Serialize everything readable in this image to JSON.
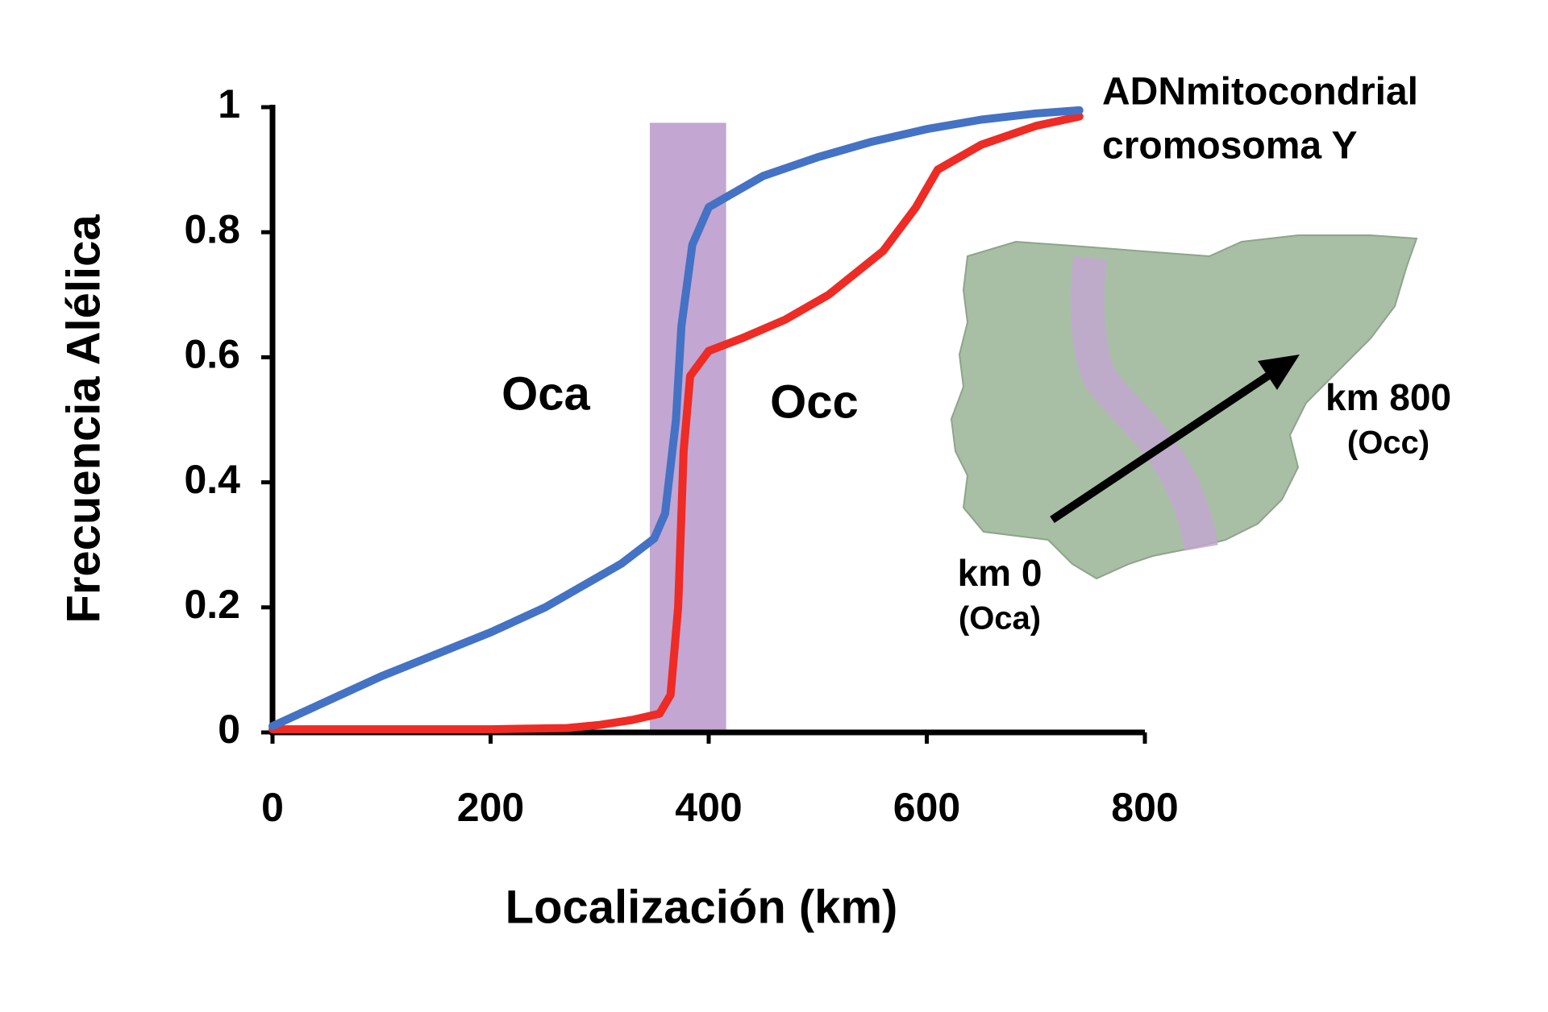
{
  "chart_data": {
    "type": "line",
    "y_label": "Frecuencia Alélica",
    "x_label": "Localización (km)",
    "xlim": [
      0,
      800
    ],
    "xticks": [
      0,
      200,
      400,
      600,
      800
    ],
    "ylim": [
      0,
      1
    ],
    "yticks": [
      0,
      0.2,
      0.4,
      0.6,
      0.8,
      1
    ],
    "band": {
      "x": [
        346,
        416
      ],
      "top": 0.975,
      "color": "#c3a6d2"
    },
    "series": [
      {
        "name": "ADNmitocondrial",
        "color": "#4472c4",
        "x": [
          0,
          50,
          100,
          150,
          200,
          250,
          300,
          320,
          350,
          360,
          370,
          375,
          385,
          400,
          420,
          450,
          500,
          550,
          600,
          650,
          700,
          740
        ],
        "values": [
          0.01,
          0.05,
          0.09,
          0.125,
          0.16,
          0.2,
          0.25,
          0.27,
          0.31,
          0.35,
          0.5,
          0.65,
          0.78,
          0.84,
          0.86,
          0.89,
          0.92,
          0.945,
          0.965,
          0.98,
          0.99,
          0.995
        ]
      },
      {
        "name": "cromosoma Y",
        "color": "#ee2b24",
        "x": [
          0,
          100,
          200,
          270,
          300,
          330,
          355,
          365,
          372,
          377,
          383,
          400,
          430,
          470,
          510,
          560,
          590,
          610,
          650,
          700,
          740
        ],
        "values": [
          0.005,
          0.005,
          0.005,
          0.007,
          0.012,
          0.02,
          0.03,
          0.06,
          0.2,
          0.45,
          0.57,
          0.61,
          0.63,
          0.66,
          0.7,
          0.77,
          0.84,
          0.9,
          0.94,
          0.97,
          0.985
        ]
      }
    ],
    "annotations": [
      "Oca",
      "Occ"
    ],
    "map_labels": [
      "km 0",
      "(Oca)",
      "km 800",
      "(Occ)"
    ]
  }
}
